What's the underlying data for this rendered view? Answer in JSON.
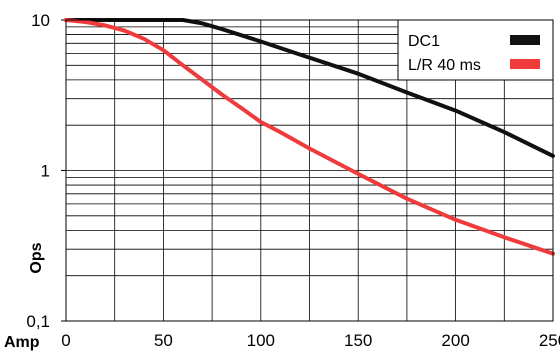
{
  "chart_data": {
    "type": "line",
    "title": "",
    "xlabel": "Amp",
    "ylabel": "Ops",
    "xlim": [
      0,
      250
    ],
    "ylim": [
      0.1,
      10
    ],
    "yscale": "log",
    "grid": true,
    "legend_position": "top-right",
    "x_ticks": [
      "0",
      "50",
      "100",
      "150",
      "200",
      "250"
    ],
    "y_ticks": [
      "10",
      "1",
      "0,1"
    ],
    "series": [
      {
        "name": "DC1",
        "color": "#111111",
        "points": [
          [
            0,
            10
          ],
          [
            20,
            10
          ],
          [
            40,
            10
          ],
          [
            60,
            10
          ],
          [
            70,
            9.5
          ],
          [
            80,
            8.7
          ],
          [
            100,
            7.2
          ],
          [
            120,
            5.9
          ],
          [
            150,
            4.4
          ],
          [
            175,
            3.3
          ],
          [
            200,
            2.5
          ],
          [
            225,
            1.8
          ],
          [
            250,
            1.25
          ]
        ]
      },
      {
        "name": "L/R 40 ms",
        "color": "#ef3b3b",
        "points": [
          [
            0,
            10
          ],
          [
            10,
            9.7
          ],
          [
            20,
            9.2
          ],
          [
            30,
            8.5
          ],
          [
            40,
            7.5
          ],
          [
            50,
            6.3
          ],
          [
            60,
            5
          ],
          [
            70,
            4
          ],
          [
            80,
            3.2
          ],
          [
            90,
            2.6
          ],
          [
            100,
            2.1
          ],
          [
            110,
            1.8
          ],
          [
            125,
            1.4
          ],
          [
            150,
            0.95
          ],
          [
            175,
            0.65
          ],
          [
            200,
            0.47
          ],
          [
            225,
            0.36
          ],
          [
            250,
            0.28
          ]
        ]
      }
    ]
  }
}
